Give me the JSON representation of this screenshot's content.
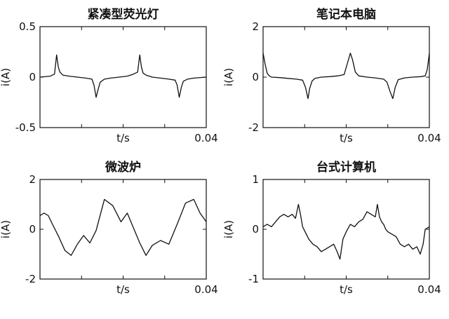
{
  "chart_data": [
    {
      "type": "line",
      "title": "紧凑型荧光灯",
      "xlabel": "t/s",
      "ylabel": "i(A)",
      "xlim": [
        0,
        0.04
      ],
      "ylim": [
        -0.5,
        0.5
      ],
      "xticks": [
        "0.04"
      ],
      "yticks": [
        "0.5",
        "0",
        "-0.5"
      ],
      "grid": false,
      "series": [
        {
          "x": [
            0,
            0.0025,
            0.0035,
            0.004,
            0.0044,
            0.0048,
            0.0055,
            0.007,
            0.009,
            0.011,
            0.0125,
            0.013,
            0.0135,
            0.014,
            0.0145,
            0.0155,
            0.017,
            0.019,
            0.021,
            0.0225,
            0.0235,
            0.024,
            0.0244,
            0.0248,
            0.0255,
            0.027,
            0.029,
            0.031,
            0.0325,
            0.033,
            0.0335,
            0.034,
            0.0345,
            0.0355,
            0.037,
            0.04
          ],
          "y": [
            0,
            0.01,
            0.03,
            0.22,
            0.1,
            0.05,
            0.02,
            0.01,
            0,
            -0.01,
            -0.02,
            -0.08,
            -0.2,
            -0.12,
            -0.05,
            -0.02,
            -0.01,
            0,
            0.01,
            0.03,
            0.05,
            0.22,
            0.1,
            0.04,
            0.02,
            0,
            -0.01,
            -0.02,
            -0.03,
            -0.08,
            -0.2,
            -0.1,
            -0.04,
            -0.02,
            -0.01,
            0
          ]
        }
      ]
    },
    {
      "type": "line",
      "title": "笔记本电脑",
      "xlabel": "t/s",
      "ylabel": "i(A)",
      "xlim": [
        0,
        0.04
      ],
      "ylim": [
        -2,
        2
      ],
      "xticks": [
        "0.04"
      ],
      "yticks": [
        "2",
        "0",
        "-2"
      ],
      "grid": false,
      "series": [
        {
          "x": [
            0,
            0.0005,
            0.001,
            0.0015,
            0.002,
            0.004,
            0.006,
            0.008,
            0.0095,
            0.0102,
            0.0108,
            0.0112,
            0.0118,
            0.0125,
            0.014,
            0.016,
            0.018,
            0.0195,
            0.0202,
            0.021,
            0.0215,
            0.0222,
            0.023,
            0.025,
            0.027,
            0.029,
            0.0298,
            0.0305,
            0.0312,
            0.0318,
            0.0325,
            0.034,
            0.036,
            0.038,
            0.039,
            0.0395,
            0.04
          ],
          "y": [
            0.95,
            0.5,
            0.15,
            0.05,
            0,
            -0.02,
            -0.05,
            -0.08,
            -0.12,
            -0.4,
            -0.85,
            -0.45,
            -0.15,
            -0.05,
            0,
            0.02,
            0.05,
            0.1,
            0.5,
            0.95,
            0.7,
            0.2,
            0.05,
            0,
            -0.03,
            -0.08,
            -0.2,
            -0.55,
            -0.85,
            -0.4,
            -0.1,
            -0.03,
            0,
            0.02,
            0.05,
            0.3,
            0.95
          ]
        }
      ]
    },
    {
      "type": "line",
      "title": "微波炉",
      "xlabel": "t/s",
      "ylabel": "i(A)",
      "xlim": [
        0,
        0.04
      ],
      "ylim": [
        -2,
        2
      ],
      "xticks": [
        "0.04"
      ],
      "yticks": [
        "2",
        "0",
        "-2"
      ],
      "grid": false,
      "series": [
        {
          "x": [
            0,
            0.001,
            0.002,
            0.003,
            0.0045,
            0.006,
            0.0075,
            0.009,
            0.0105,
            0.012,
            0.0135,
            0.0155,
            0.0175,
            0.0195,
            0.021,
            0.0225,
            0.024,
            0.0255,
            0.027,
            0.029,
            0.031,
            0.033,
            0.035,
            0.037,
            0.0385,
            0.04
          ],
          "y": [
            0.55,
            0.65,
            0.55,
            0.2,
            -0.3,
            -0.85,
            -1.05,
            -0.6,
            -0.25,
            -0.55,
            -0.05,
            1.2,
            0.95,
            0.3,
            0.65,
            0.05,
            -0.55,
            -1.05,
            -0.65,
            -0.45,
            -0.6,
            0.2,
            1.05,
            1.2,
            0.65,
            0.3
          ]
        }
      ]
    },
    {
      "type": "line",
      "title": "台式计算机",
      "xlabel": "t/s",
      "ylabel": "i(A)",
      "xlim": [
        0,
        0.04
      ],
      "ylim": [
        -1,
        1
      ],
      "xticks": [
        "0.04"
      ],
      "yticks": [
        "1",
        "0",
        "-1"
      ],
      "grid": false,
      "series": [
        {
          "x": [
            0,
            0.001,
            0.002,
            0.003,
            0.004,
            0.005,
            0.006,
            0.007,
            0.0078,
            0.0085,
            0.009,
            0.0095,
            0.011,
            0.012,
            0.013,
            0.014,
            0.015,
            0.016,
            0.017,
            0.0178,
            0.0185,
            0.0192,
            0.02,
            0.021,
            0.022,
            0.023,
            0.024,
            0.025,
            0.026,
            0.027,
            0.0275,
            0.028,
            0.0285,
            0.029,
            0.0295,
            0.03,
            0.031,
            0.032,
            0.033,
            0.034,
            0.035,
            0.036,
            0.037,
            0.0378,
            0.0385,
            0.039,
            0.04
          ],
          "y": [
            0.05,
            0.1,
            0.05,
            0.15,
            0.25,
            0.3,
            0.25,
            0.3,
            0.22,
            0.5,
            0.3,
            0.05,
            -0.2,
            -0.3,
            -0.35,
            -0.45,
            -0.4,
            -0.35,
            -0.3,
            -0.45,
            -0.6,
            -0.2,
            -0.05,
            0.1,
            0.05,
            0.15,
            0.2,
            0.35,
            0.3,
            0.25,
            0.5,
            0.25,
            0.15,
            0.1,
            0,
            -0.05,
            -0.1,
            -0.15,
            -0.3,
            -0.35,
            -0.3,
            -0.4,
            -0.35,
            -0.5,
            -0.3,
            0,
            0.05
          ]
        }
      ]
    }
  ]
}
